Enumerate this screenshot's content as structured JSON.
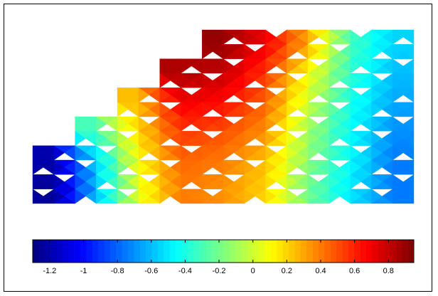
{
  "chart_data": {
    "type": "heatmap",
    "title": "",
    "xlabel": "",
    "ylabel": "",
    "colormap": "jet",
    "colorbar": {
      "orientation": "horizontal",
      "placement": "bottom",
      "range": [
        -1.3,
        0.95
      ],
      "tick_values": [
        -1.2,
        -1.0,
        -0.8,
        -0.6,
        -0.4,
        -0.2,
        0,
        0.2,
        0.4,
        0.6,
        0.8
      ],
      "tick_labels": [
        "-1.2",
        "-1",
        "-0.8",
        "-0.6",
        "-0.4",
        "-0.2",
        "0",
        "0.2",
        "0.4",
        "0.6",
        "0.8"
      ]
    },
    "field": {
      "description_of_values": "scalar value per cell of a triangulated lattice mesh, columns left to right",
      "columns": 9,
      "rows": 6,
      "cell_values_by_row_top_to_bottom": [
        [
          null,
          null,
          null,
          null,
          0.9,
          0.7,
          0.3,
          -0.3,
          -0.55
        ],
        [
          null,
          null,
          null,
          0.85,
          0.8,
          0.55,
          0.1,
          -0.35,
          -0.6
        ],
        [
          null,
          null,
          0.25,
          0.7,
          0.65,
          0.45,
          0.0,
          -0.4,
          -0.65
        ],
        [
          null,
          -0.3,
          0.2,
          0.55,
          0.5,
          0.35,
          -0.1,
          -0.45,
          -0.7
        ],
        [
          -1.2,
          -0.55,
          0.1,
          0.45,
          0.4,
          0.25,
          -0.15,
          -0.45,
          -0.75
        ],
        [
          -1.25,
          -0.6,
          0.05,
          0.4,
          0.35,
          0.2,
          -0.2,
          -0.5,
          -0.75
        ]
      ]
    }
  }
}
